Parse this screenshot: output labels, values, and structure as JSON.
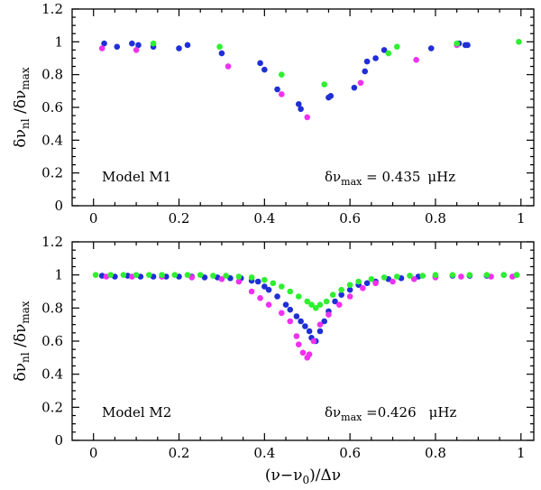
{
  "chart_data": [
    {
      "type": "scatter",
      "panel": "top",
      "xlim": [
        -0.05,
        1.03
      ],
      "ylim": [
        0,
        1.2
      ],
      "xticks": [
        0,
        0.2,
        0.4,
        0.6,
        0.8,
        1
      ],
      "xtick_labels": [
        "0",
        "0.2",
        "0.4",
        "0.6",
        "0.8",
        "1"
      ],
      "yticks": [
        0,
        0.2,
        0.4,
        0.6,
        0.8,
        1,
        1.2
      ],
      "ytick_labels": [
        "0",
        "0.2",
        "0.4",
        "0.6",
        "0.8",
        "1",
        "1.2"
      ],
      "ylabel": "δν_nl / δν_max",
      "model_label": "Model M1",
      "dnu_label": "δν_max = 0.435 μHz",
      "dnu_value": "0.435",
      "dnu_unit": "μHz",
      "series": [
        {
          "name": "blue",
          "color": "#1f2fd6",
          "points": [
            [
              0.025,
              0.99
            ],
            [
              0.055,
              0.97
            ],
            [
              0.09,
              0.99
            ],
            [
              0.105,
              0.98
            ],
            [
              0.14,
              0.97
            ],
            [
              0.2,
              0.96
            ],
            [
              0.22,
              0.98
            ],
            [
              0.3,
              0.93
            ],
            [
              0.39,
              0.87
            ],
            [
              0.4,
              0.83
            ],
            [
              0.43,
              0.71
            ],
            [
              0.48,
              0.62
            ],
            [
              0.485,
              0.59
            ],
            [
              0.55,
              0.66
            ],
            [
              0.555,
              0.67
            ],
            [
              0.61,
              0.72
            ],
            [
              0.635,
              0.82
            ],
            [
              0.64,
              0.88
            ],
            [
              0.66,
              0.9
            ],
            [
              0.68,
              0.95
            ],
            [
              0.79,
              0.96
            ],
            [
              0.855,
              0.99
            ],
            [
              0.87,
              0.98
            ],
            [
              0.875,
              0.98
            ]
          ]
        },
        {
          "name": "magenta",
          "color": "#f030f0",
          "points": [
            [
              0.02,
              0.96
            ],
            [
              0.1,
              0.95
            ],
            [
              0.315,
              0.85
            ],
            [
              0.44,
              0.68
            ],
            [
              0.5,
              0.54
            ],
            [
              0.625,
              0.75
            ],
            [
              0.755,
              0.89
            ],
            [
              0.85,
              0.98
            ]
          ]
        },
        {
          "name": "green",
          "color": "#2ef02e",
          "points": [
            [
              0.14,
              0.99
            ],
            [
              0.295,
              0.97
            ],
            [
              0.44,
              0.8
            ],
            [
              0.54,
              0.74
            ],
            [
              0.69,
              0.93
            ],
            [
              0.71,
              0.97
            ],
            [
              0.85,
              0.99
            ],
            [
              0.995,
              1.0
            ]
          ]
        }
      ]
    },
    {
      "type": "scatter",
      "panel": "bottom",
      "xlim": [
        -0.05,
        1.03
      ],
      "ylim": [
        0,
        1.2
      ],
      "xticks": [
        0,
        0.2,
        0.4,
        0.6,
        0.8,
        1
      ],
      "xtick_labels": [
        "0",
        "0.2",
        "0.4",
        "0.6",
        "0.8",
        "1"
      ],
      "yticks": [
        0,
        0.2,
        0.4,
        0.6,
        0.8,
        1,
        1.2
      ],
      "ytick_labels": [
        "0",
        "0.2",
        "0.4",
        "0.6",
        "0.8",
        "1",
        "1.2"
      ],
      "ylabel": "δν_nl / δν_max",
      "xlabel": "(ν−ν_0)/Δν",
      "model_label": "Model M2",
      "dnu_label": "δν_max =0.426 μHz",
      "dnu_value": "0.426",
      "dnu_unit": "μHz",
      "series": [
        {
          "name": "blue",
          "color": "#1f2fd6",
          "points": [
            [
              0.02,
              0.995
            ],
            [
              0.05,
              0.99
            ],
            [
              0.08,
              0.995
            ],
            [
              0.11,
              0.99
            ],
            [
              0.14,
              0.99
            ],
            [
              0.17,
              0.99
            ],
            [
              0.2,
              0.99
            ],
            [
              0.23,
              0.99
            ],
            [
              0.26,
              0.985
            ],
            [
              0.29,
              0.985
            ],
            [
              0.32,
              0.98
            ],
            [
              0.345,
              0.98
            ],
            [
              0.37,
              0.965
            ],
            [
              0.385,
              0.96
            ],
            [
              0.4,
              0.93
            ],
            [
              0.41,
              0.91
            ],
            [
              0.43,
              0.87
            ],
            [
              0.45,
              0.82
            ],
            [
              0.46,
              0.79
            ],
            [
              0.475,
              0.75
            ],
            [
              0.485,
              0.72
            ],
            [
              0.495,
              0.69
            ],
            [
              0.505,
              0.66
            ],
            [
              0.51,
              0.62
            ],
            [
              0.52,
              0.6
            ],
            [
              0.53,
              0.66
            ],
            [
              0.54,
              0.72
            ],
            [
              0.55,
              0.78
            ],
            [
              0.565,
              0.84
            ],
            [
              0.58,
              0.88
            ],
            [
              0.6,
              0.91
            ],
            [
              0.62,
              0.94
            ],
            [
              0.64,
              0.95
            ],
            [
              0.66,
              0.96
            ],
            [
              0.69,
              0.975
            ],
            [
              0.72,
              0.98
            ],
            [
              0.76,
              0.99
            ],
            [
              0.8,
              0.99
            ],
            [
              0.84,
              0.995
            ],
            [
              0.88,
              0.995
            ],
            [
              0.92,
              0.995
            ],
            [
              0.96,
              1.0
            ],
            [
              0.99,
              1.0
            ]
          ]
        },
        {
          "name": "magenta",
          "color": "#f030f0",
          "points": [
            [
              0.03,
              0.99
            ],
            [
              0.09,
              0.99
            ],
            [
              0.16,
              0.99
            ],
            [
              0.23,
              0.985
            ],
            [
              0.3,
              0.975
            ],
            [
              0.34,
              0.96
            ],
            [
              0.37,
              0.9
            ],
            [
              0.39,
              0.86
            ],
            [
              0.41,
              0.82
            ],
            [
              0.44,
              0.77
            ],
            [
              0.46,
              0.72
            ],
            [
              0.475,
              0.63
            ],
            [
              0.48,
              0.58
            ],
            [
              0.49,
              0.53
            ],
            [
              0.5,
              0.5
            ],
            [
              0.505,
              0.52
            ],
            [
              0.515,
              0.6
            ],
            [
              0.53,
              0.7
            ],
            [
              0.55,
              0.76
            ],
            [
              0.575,
              0.82
            ],
            [
              0.6,
              0.87
            ],
            [
              0.63,
              0.92
            ],
            [
              0.66,
              0.95
            ],
            [
              0.7,
              0.96
            ],
            [
              0.75,
              0.975
            ],
            [
              0.8,
              0.985
            ],
            [
              0.86,
              0.99
            ],
            [
              0.93,
              0.99
            ],
            [
              0.98,
              0.99
            ]
          ]
        },
        {
          "name": "green",
          "color": "#2ef02e",
          "points": [
            [
              0.005,
              1.0
            ],
            [
              0.04,
              1.0
            ],
            [
              0.07,
              1.0
            ],
            [
              0.1,
              1.0
            ],
            [
              0.13,
              1.0
            ],
            [
              0.16,
              1.0
            ],
            [
              0.19,
              1.0
            ],
            [
              0.22,
              1.0
            ],
            [
              0.25,
              1.0
            ],
            [
              0.28,
              0.995
            ],
            [
              0.31,
              0.995
            ],
            [
              0.34,
              0.99
            ],
            [
              0.37,
              0.985
            ],
            [
              0.4,
              0.97
            ],
            [
              0.42,
              0.95
            ],
            [
              0.44,
              0.93
            ],
            [
              0.46,
              0.9
            ],
            [
              0.48,
              0.87
            ],
            [
              0.5,
              0.84
            ],
            [
              0.51,
              0.82
            ],
            [
              0.52,
              0.8
            ],
            [
              0.53,
              0.82
            ],
            [
              0.545,
              0.84
            ],
            [
              0.56,
              0.88
            ],
            [
              0.58,
              0.91
            ],
            [
              0.6,
              0.94
            ],
            [
              0.62,
              0.96
            ],
            [
              0.65,
              0.975
            ],
            [
              0.68,
              0.985
            ],
            [
              0.71,
              0.99
            ],
            [
              0.74,
              0.995
            ],
            [
              0.77,
              0.995
            ],
            [
              0.8,
              1.0
            ],
            [
              0.84,
              1.0
            ],
            [
              0.88,
              1.0
            ],
            [
              0.92,
              1.0
            ],
            [
              0.96,
              1.0
            ],
            [
              0.99,
              1.0
            ]
          ]
        }
      ]
    }
  ]
}
